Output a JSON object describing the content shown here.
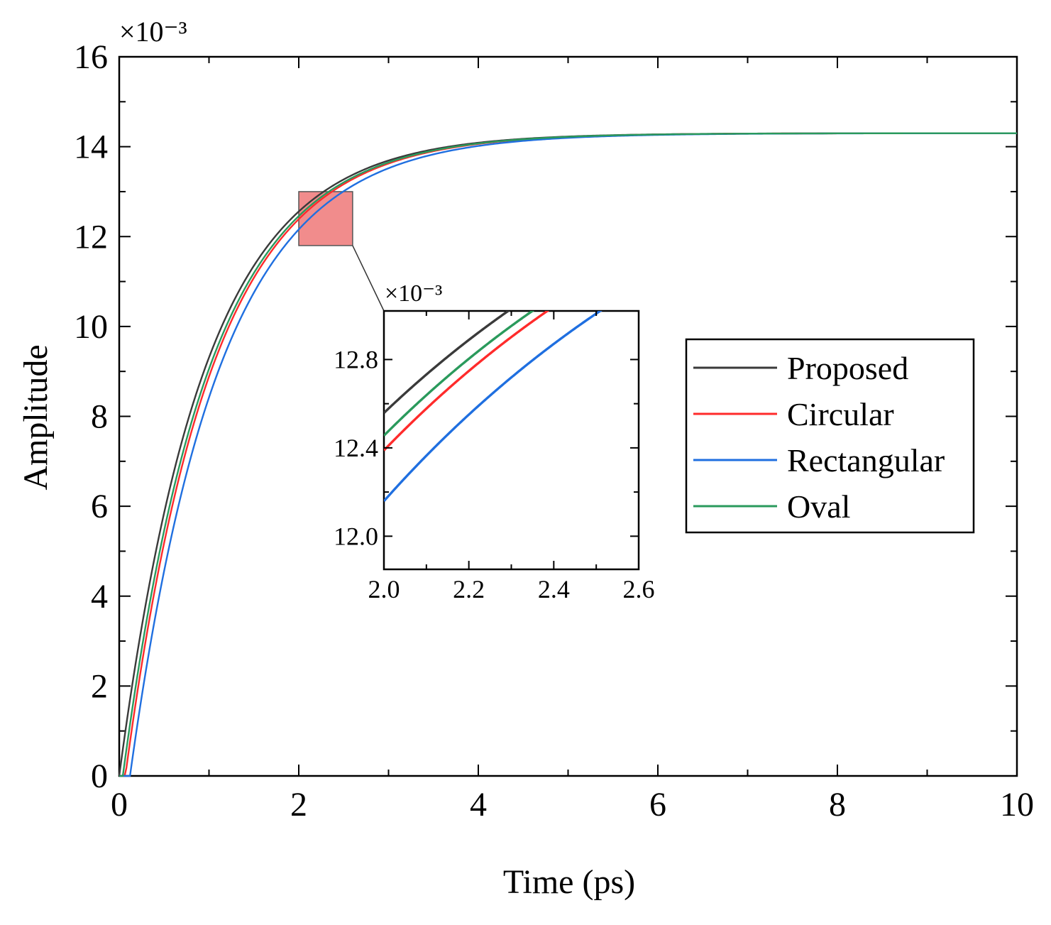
{
  "chart_data": {
    "type": "line",
    "xlabel": "Time (ps)",
    "ylabel": "Amplitude",
    "y_multiplier": "×10⁻³",
    "xlim": [
      0,
      10
    ],
    "ylim": [
      0,
      16
    ],
    "xticks": [
      0,
      2,
      4,
      6,
      8,
      10
    ],
    "xtick_labels": [
      "0",
      "2",
      "4",
      "6",
      "8",
      "10"
    ],
    "yticks": [
      0,
      2,
      4,
      6,
      8,
      10,
      12,
      14,
      16
    ],
    "ytick_labels": [
      "0",
      "2",
      "4",
      "6",
      "8",
      "10",
      "12",
      "14",
      "16"
    ],
    "legend_position": "right-center",
    "series": [
      {
        "name": "Proposed",
        "color": "#3a3a3a",
        "model": {
          "A": 14.3,
          "tau": 0.95,
          "t0": 0.0
        }
      },
      {
        "name": "Circular",
        "color": "#ff2b2b",
        "model": {
          "A": 14.3,
          "tau": 0.96,
          "t0": 0.068
        }
      },
      {
        "name": "Rectangular",
        "color": "#1f6fe0",
        "model": {
          "A": 14.3,
          "tau": 0.99,
          "t0": 0.12
        }
      },
      {
        "name": "Oval",
        "color": "#2a9a5c",
        "model": {
          "A": 14.3,
          "tau": 0.957,
          "t0": 0.04
        }
      }
    ],
    "zoom_region": {
      "xlim": [
        2.0,
        2.6
      ],
      "ylim": [
        11.8,
        13.0
      ],
      "color": "#f08080"
    },
    "inset": {
      "y_multiplier": "×10⁻³",
      "xlim": [
        2.0,
        2.6
      ],
      "ylim": [
        11.85,
        13.02
      ],
      "xticks": [
        2.0,
        2.2,
        2.4,
        2.6
      ],
      "xtick_labels": [
        "2.0",
        "2.2",
        "2.4",
        "2.6"
      ],
      "yticks": [
        12.0,
        12.4,
        12.8
      ],
      "ytick_labels": [
        "12.0",
        "12.4",
        "12.8"
      ]
    }
  }
}
